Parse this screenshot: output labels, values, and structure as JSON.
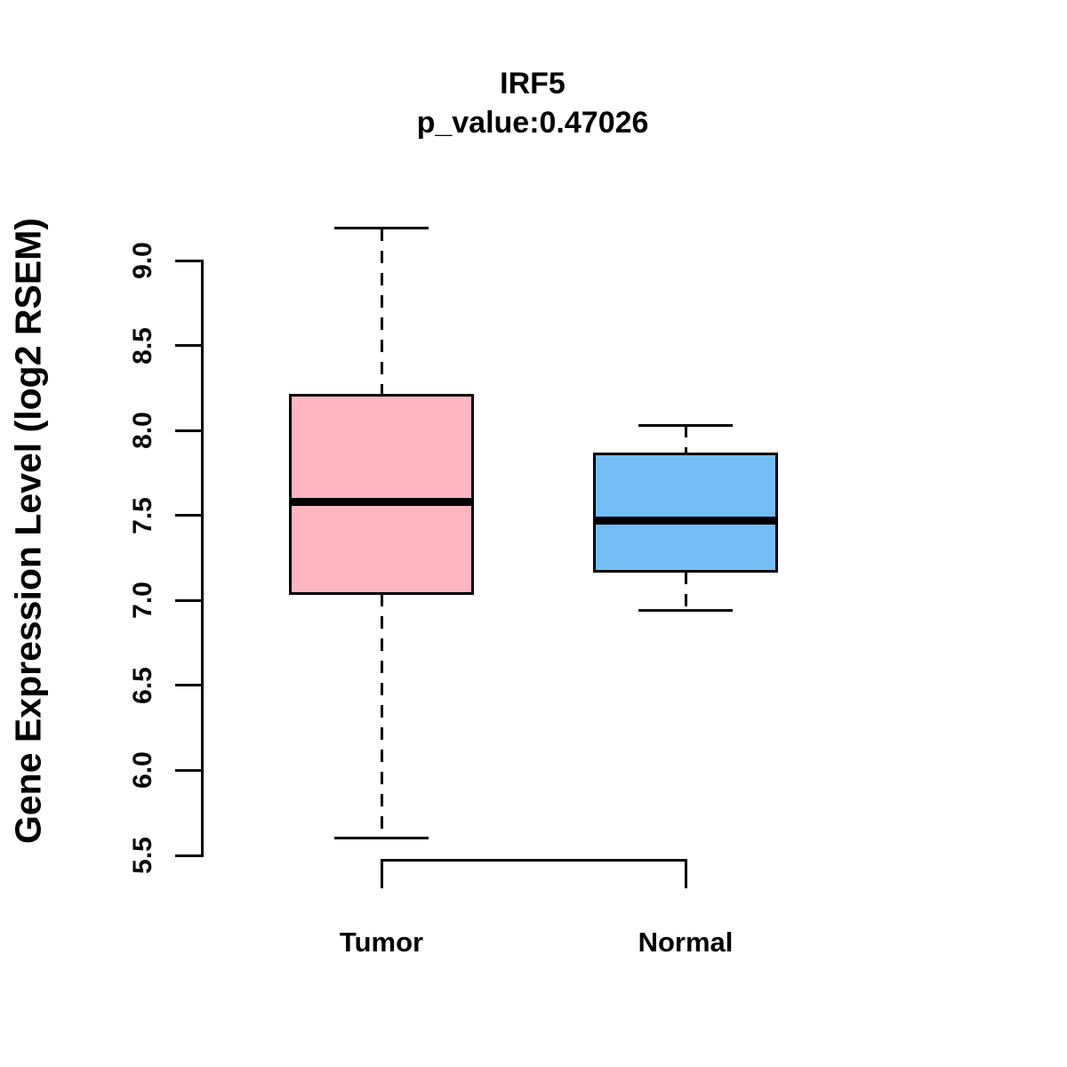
{
  "chart_data": {
    "type": "boxplot",
    "title": "IRF5",
    "subtitle": "p_value:0.47026",
    "ylabel": "Gene Expression Level (log2 RSEM)",
    "xlabel": "",
    "ylim": [
      5.5,
      9.0
    ],
    "yticks": [
      "5.5",
      "6.0",
      "6.5",
      "7.0",
      "7.5",
      "8.0",
      "8.5",
      "9.0"
    ],
    "ytick_values": [
      5.5,
      6.0,
      6.5,
      7.0,
      7.5,
      8.0,
      8.5,
      9.0
    ],
    "categories": [
      "Tumor",
      "Normal"
    ],
    "grid": false,
    "legend": "none",
    "series": [
      {
        "name": "Tumor",
        "fill_color": "#FFB6C1",
        "whisker_low": 5.6,
        "q1": 7.04,
        "median": 7.58,
        "q3": 8.21,
        "whisker_high": 9.19
      },
      {
        "name": "Normal",
        "fill_color": "#74BEF8",
        "whisker_low": 6.94,
        "q1": 7.17,
        "median": 7.47,
        "q3": 7.86,
        "whisker_high": 8.03
      }
    ],
    "colors": {
      "axis": "#000000",
      "box_border": "#000000",
      "median_line": "#000000",
      "background": "#FFFFFF"
    }
  }
}
